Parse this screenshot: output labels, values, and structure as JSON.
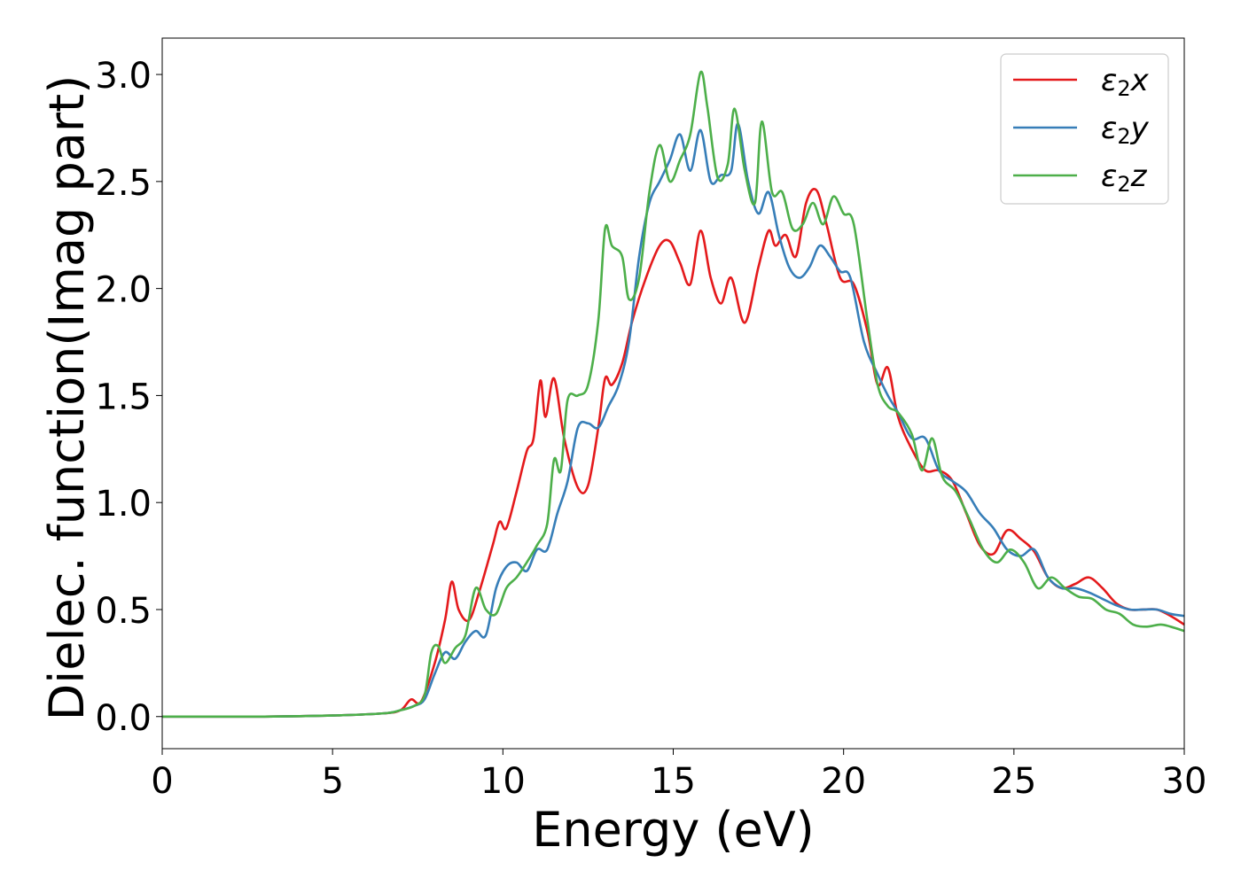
{
  "chart_data": {
    "type": "line",
    "title": "",
    "xlabel": "Energy (eV)",
    "ylabel": "Dielec. function(Imag part)",
    "xlim": [
      0,
      30
    ],
    "ylim": [
      -0.15,
      3.17
    ],
    "xticks": [
      0,
      5,
      10,
      15,
      20,
      25,
      30
    ],
    "xtick_labels": [
      "0",
      "5",
      "10",
      "15",
      "20",
      "25",
      "30"
    ],
    "yticks": [
      0.0,
      0.5,
      1.0,
      1.5,
      2.0,
      2.5,
      3.0
    ],
    "ytick_labels": [
      "0.0",
      "0.5",
      "1.0",
      "1.5",
      "2.0",
      "2.5",
      "3.0"
    ],
    "grid": false,
    "legend_position": "top-right",
    "series": [
      {
        "name": "ε2x",
        "color": "#e41a1c",
        "points": [
          [
            0,
            0.0
          ],
          [
            3,
            0.0
          ],
          [
            5,
            0.005
          ],
          [
            6.5,
            0.015
          ],
          [
            7,
            0.03
          ],
          [
            7.3,
            0.08
          ],
          [
            7.6,
            0.07
          ],
          [
            8,
            0.25
          ],
          [
            8.3,
            0.45
          ],
          [
            8.5,
            0.63
          ],
          [
            8.7,
            0.5
          ],
          [
            9.0,
            0.45
          ],
          [
            9.3,
            0.58
          ],
          [
            9.7,
            0.8
          ],
          [
            9.9,
            0.91
          ],
          [
            10.1,
            0.88
          ],
          [
            10.4,
            1.05
          ],
          [
            10.7,
            1.24
          ],
          [
            10.9,
            1.3
          ],
          [
            11.1,
            1.57
          ],
          [
            11.25,
            1.4
          ],
          [
            11.5,
            1.58
          ],
          [
            11.8,
            1.3
          ],
          [
            12.2,
            1.07
          ],
          [
            12.5,
            1.08
          ],
          [
            12.8,
            1.35
          ],
          [
            13.0,
            1.58
          ],
          [
            13.2,
            1.55
          ],
          [
            13.5,
            1.65
          ],
          [
            13.8,
            1.85
          ],
          [
            14.2,
            2.05
          ],
          [
            14.6,
            2.2
          ],
          [
            14.9,
            2.22
          ],
          [
            15.2,
            2.12
          ],
          [
            15.5,
            2.02
          ],
          [
            15.8,
            2.27
          ],
          [
            16.1,
            2.05
          ],
          [
            16.4,
            1.93
          ],
          [
            16.7,
            2.05
          ],
          [
            17.1,
            1.84
          ],
          [
            17.5,
            2.1
          ],
          [
            17.8,
            2.27
          ],
          [
            18.0,
            2.2
          ],
          [
            18.3,
            2.25
          ],
          [
            18.6,
            2.15
          ],
          [
            18.9,
            2.4
          ],
          [
            19.2,
            2.46
          ],
          [
            19.5,
            2.3
          ],
          [
            19.9,
            2.05
          ],
          [
            20.3,
            2.02
          ],
          [
            20.7,
            1.8
          ],
          [
            21.0,
            1.55
          ],
          [
            21.3,
            1.63
          ],
          [
            21.6,
            1.4
          ],
          [
            22.0,
            1.25
          ],
          [
            22.4,
            1.15
          ],
          [
            22.8,
            1.15
          ],
          [
            23.2,
            1.1
          ],
          [
            23.6,
            0.95
          ],
          [
            24.0,
            0.8
          ],
          [
            24.4,
            0.76
          ],
          [
            24.8,
            0.87
          ],
          [
            25.2,
            0.83
          ],
          [
            25.6,
            0.77
          ],
          [
            26.0,
            0.65
          ],
          [
            26.4,
            0.6
          ],
          [
            26.8,
            0.62
          ],
          [
            27.2,
            0.65
          ],
          [
            27.6,
            0.6
          ],
          [
            28.0,
            0.53
          ],
          [
            28.4,
            0.5
          ],
          [
            28.8,
            0.5
          ],
          [
            29.2,
            0.5
          ],
          [
            29.6,
            0.47
          ],
          [
            30,
            0.43
          ]
        ]
      },
      {
        "name": "ε2y",
        "color": "#377eb8",
        "points": [
          [
            0,
            0.0
          ],
          [
            3,
            0.0
          ],
          [
            5,
            0.005
          ],
          [
            6.5,
            0.015
          ],
          [
            7,
            0.03
          ],
          [
            7.4,
            0.05
          ],
          [
            7.7,
            0.08
          ],
          [
            8.0,
            0.2
          ],
          [
            8.3,
            0.3
          ],
          [
            8.6,
            0.27
          ],
          [
            8.9,
            0.35
          ],
          [
            9.2,
            0.4
          ],
          [
            9.5,
            0.38
          ],
          [
            9.8,
            0.6
          ],
          [
            10.1,
            0.7
          ],
          [
            10.4,
            0.72
          ],
          [
            10.7,
            0.68
          ],
          [
            11.0,
            0.78
          ],
          [
            11.3,
            0.78
          ],
          [
            11.6,
            0.95
          ],
          [
            11.9,
            1.1
          ],
          [
            12.2,
            1.35
          ],
          [
            12.5,
            1.37
          ],
          [
            12.8,
            1.35
          ],
          [
            13.1,
            1.45
          ],
          [
            13.4,
            1.55
          ],
          [
            13.7,
            1.75
          ],
          [
            14.0,
            2.15
          ],
          [
            14.3,
            2.4
          ],
          [
            14.6,
            2.5
          ],
          [
            14.9,
            2.6
          ],
          [
            15.2,
            2.72
          ],
          [
            15.5,
            2.55
          ],
          [
            15.8,
            2.74
          ],
          [
            16.1,
            2.5
          ],
          [
            16.4,
            2.53
          ],
          [
            16.7,
            2.55
          ],
          [
            16.9,
            2.77
          ],
          [
            17.2,
            2.5
          ],
          [
            17.5,
            2.35
          ],
          [
            17.8,
            2.45
          ],
          [
            18.1,
            2.25
          ],
          [
            18.4,
            2.1
          ],
          [
            18.7,
            2.05
          ],
          [
            19.0,
            2.1
          ],
          [
            19.3,
            2.2
          ],
          [
            19.6,
            2.15
          ],
          [
            19.9,
            2.08
          ],
          [
            20.2,
            2.05
          ],
          [
            20.6,
            1.75
          ],
          [
            21.0,
            1.6
          ],
          [
            21.3,
            1.5
          ],
          [
            21.6,
            1.42
          ],
          [
            22.0,
            1.3
          ],
          [
            22.4,
            1.3
          ],
          [
            22.8,
            1.15
          ],
          [
            23.2,
            1.1
          ],
          [
            23.6,
            1.05
          ],
          [
            24.0,
            0.95
          ],
          [
            24.4,
            0.88
          ],
          [
            24.8,
            0.78
          ],
          [
            25.2,
            0.75
          ],
          [
            25.6,
            0.78
          ],
          [
            26.0,
            0.65
          ],
          [
            26.4,
            0.6
          ],
          [
            26.8,
            0.6
          ],
          [
            27.2,
            0.58
          ],
          [
            27.6,
            0.55
          ],
          [
            28.0,
            0.52
          ],
          [
            28.4,
            0.5
          ],
          [
            28.8,
            0.5
          ],
          [
            29.2,
            0.5
          ],
          [
            29.6,
            0.48
          ],
          [
            30,
            0.47
          ]
        ]
      },
      {
        "name": "ε2z",
        "color": "#4daf4a",
        "points": [
          [
            0,
            0.0
          ],
          [
            3,
            0.0
          ],
          [
            5,
            0.005
          ],
          [
            6.5,
            0.015
          ],
          [
            7,
            0.03
          ],
          [
            7.4,
            0.05
          ],
          [
            7.7,
            0.1
          ],
          [
            7.9,
            0.3
          ],
          [
            8.1,
            0.33
          ],
          [
            8.3,
            0.25
          ],
          [
            8.6,
            0.32
          ],
          [
            8.9,
            0.38
          ],
          [
            9.2,
            0.6
          ],
          [
            9.5,
            0.5
          ],
          [
            9.8,
            0.48
          ],
          [
            10.1,
            0.6
          ],
          [
            10.4,
            0.65
          ],
          [
            10.7,
            0.72
          ],
          [
            11.0,
            0.8
          ],
          [
            11.3,
            0.9
          ],
          [
            11.5,
            1.2
          ],
          [
            11.7,
            1.15
          ],
          [
            11.9,
            1.48
          ],
          [
            12.2,
            1.5
          ],
          [
            12.5,
            1.55
          ],
          [
            12.8,
            1.85
          ],
          [
            13.0,
            2.28
          ],
          [
            13.2,
            2.2
          ],
          [
            13.5,
            2.15
          ],
          [
            13.7,
            1.95
          ],
          [
            14.0,
            2.05
          ],
          [
            14.3,
            2.45
          ],
          [
            14.6,
            2.67
          ],
          [
            14.9,
            2.5
          ],
          [
            15.2,
            2.6
          ],
          [
            15.5,
            2.72
          ],
          [
            15.8,
            3.01
          ],
          [
            16.0,
            2.85
          ],
          [
            16.3,
            2.52
          ],
          [
            16.6,
            2.58
          ],
          [
            16.8,
            2.84
          ],
          [
            17.1,
            2.55
          ],
          [
            17.4,
            2.4
          ],
          [
            17.6,
            2.78
          ],
          [
            17.9,
            2.45
          ],
          [
            18.2,
            2.45
          ],
          [
            18.5,
            2.28
          ],
          [
            18.8,
            2.3
          ],
          [
            19.1,
            2.4
          ],
          [
            19.4,
            2.3
          ],
          [
            19.7,
            2.43
          ],
          [
            20.0,
            2.35
          ],
          [
            20.3,
            2.3
          ],
          [
            20.7,
            1.85
          ],
          [
            21.0,
            1.55
          ],
          [
            21.3,
            1.45
          ],
          [
            21.6,
            1.42
          ],
          [
            22.0,
            1.32
          ],
          [
            22.3,
            1.15
          ],
          [
            22.6,
            1.3
          ],
          [
            22.9,
            1.12
          ],
          [
            23.3,
            1.05
          ],
          [
            23.7,
            0.92
          ],
          [
            24.1,
            0.78
          ],
          [
            24.5,
            0.72
          ],
          [
            24.9,
            0.78
          ],
          [
            25.3,
            0.72
          ],
          [
            25.7,
            0.6
          ],
          [
            26.1,
            0.65
          ],
          [
            26.5,
            0.6
          ],
          [
            26.9,
            0.56
          ],
          [
            27.3,
            0.55
          ],
          [
            27.7,
            0.5
          ],
          [
            28.1,
            0.48
          ],
          [
            28.5,
            0.43
          ],
          [
            28.9,
            0.42
          ],
          [
            29.3,
            0.43
          ],
          [
            29.6,
            0.42
          ],
          [
            30,
            0.4
          ]
        ]
      }
    ]
  }
}
